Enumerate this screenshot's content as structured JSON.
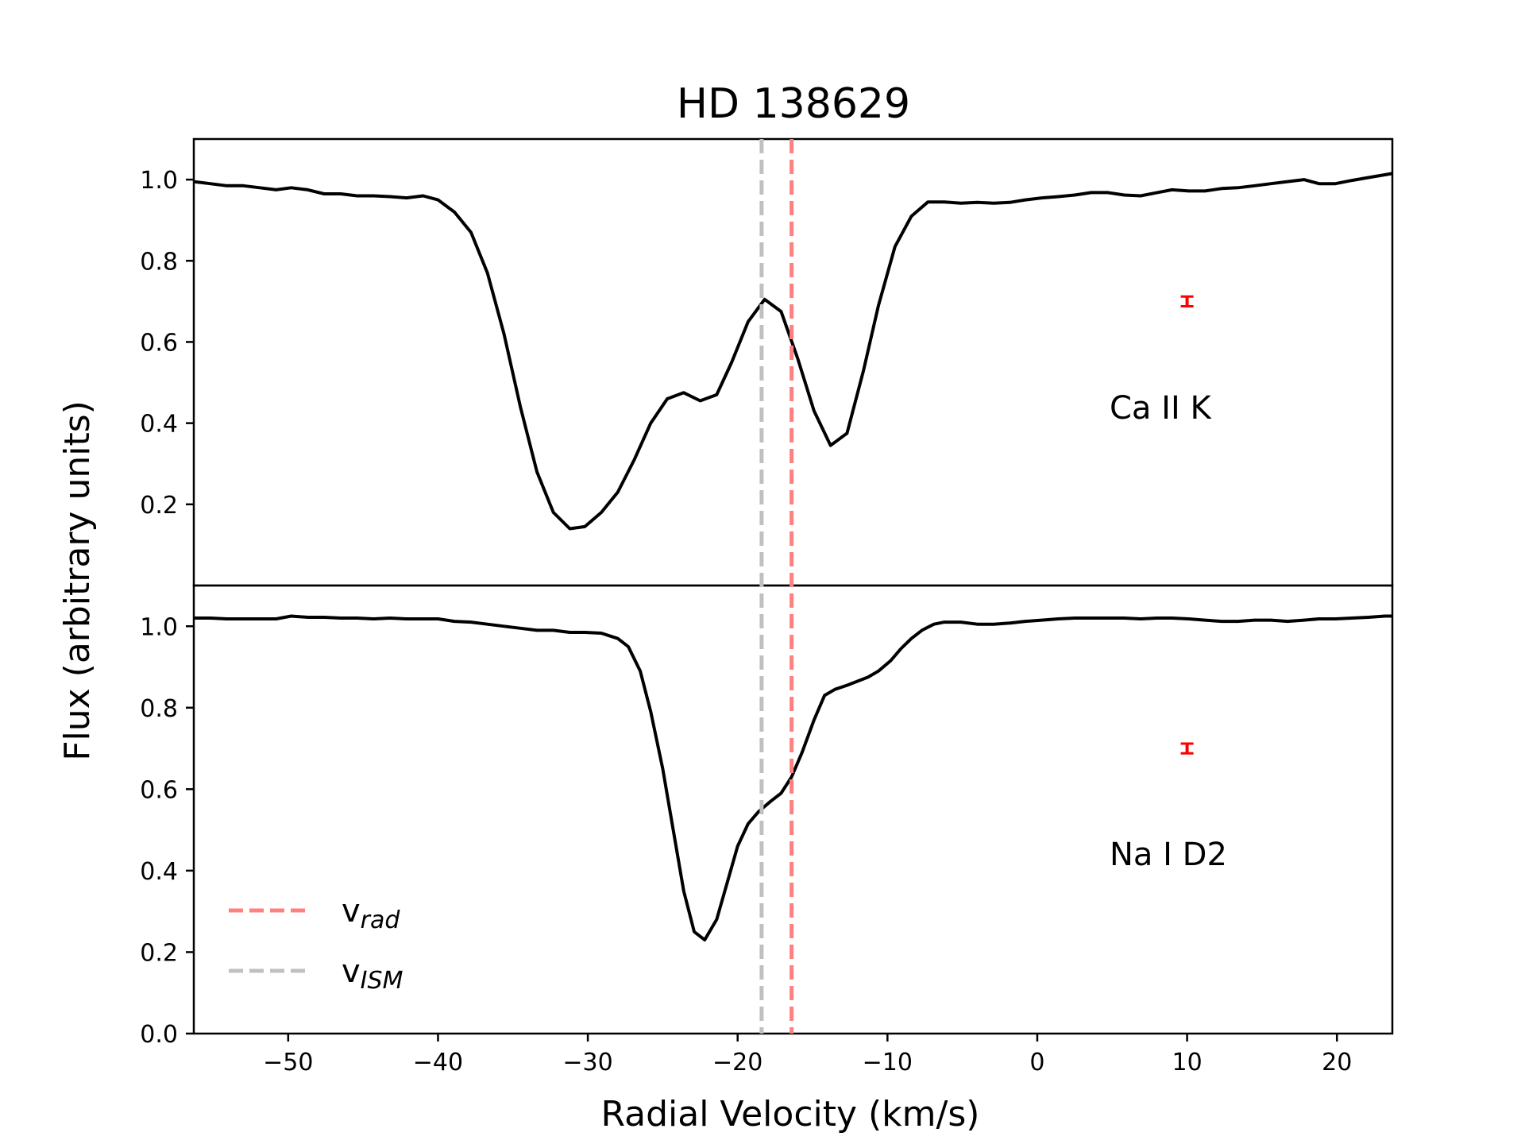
{
  "chart_data": {
    "type": "line",
    "title": "HD 138629",
    "xlabel": "Radial Velocity (km/s)",
    "ylabel": "Flux (arbitrary units)",
    "xlim": [
      -56.3,
      23.7
    ],
    "x_ticks": [
      -50,
      -40,
      -30,
      -20,
      -10,
      0,
      10,
      20
    ],
    "x_tick_labels": [
      "−50",
      "−40",
      "−30",
      "−20",
      "−10",
      "0",
      "10",
      "20"
    ],
    "colors": {
      "line": "#000000",
      "v_rad": "#ff8080",
      "v_ism": "#c0c0c0",
      "error_bar": "#ff0000"
    },
    "legend": {
      "location": "lower-left",
      "entries": [
        {
          "base": "v",
          "sub": "rad",
          "color": "#ff8080"
        },
        {
          "base": "v",
          "sub": "ISM",
          "color": "#c0c0c0"
        }
      ]
    },
    "vlines": [
      {
        "name": "v_rad",
        "x": -16.4,
        "color": "#ff8080"
      },
      {
        "name": "v_ISM",
        "x": -18.4,
        "color": "#c0c0c0"
      }
    ],
    "panels": [
      {
        "label": "Ca II K",
        "ylim": [
          0.0,
          1.1
        ],
        "y_ticks": [
          0.2,
          0.4,
          0.6,
          0.8,
          1.0
        ],
        "y_tick_labels": [
          "0.2",
          "0.4",
          "0.6",
          "0.8",
          "1.0"
        ],
        "error_bar": {
          "x": 10.0,
          "y": 0.7,
          "err": 0.008
        },
        "series": [
          {
            "name": "Ca II K",
            "x": [
              -56.3,
              -55.2,
              -54.1,
              -53.0,
              -51.9,
              -50.8,
              -49.8,
              -48.7,
              -47.6,
              -46.5,
              -45.4,
              -44.3,
              -43.2,
              -42.1,
              -41.0,
              -40.0,
              -38.9,
              -37.8,
              -36.7,
              -35.6,
              -34.5,
              -33.4,
              -32.3,
              -31.2,
              -30.2,
              -29.1,
              -28.0,
              -26.9,
              -25.8,
              -24.7,
              -23.6,
              -22.5,
              -21.4,
              -20.4,
              -19.3,
              -18.2,
              -17.1,
              -16.0,
              -14.9,
              -13.8,
              -12.7,
              -11.6,
              -10.6,
              -9.5,
              -8.4,
              -7.3,
              -6.2,
              -5.1,
              -4.0,
              -2.9,
              -1.8,
              -0.8,
              0.3,
              1.4,
              2.5,
              3.6,
              4.7,
              5.8,
              6.9,
              8.0,
              9.0,
              10.1,
              11.2,
              12.3,
              13.4,
              14.5,
              15.6,
              16.7,
              17.8,
              18.8,
              19.9,
              21.0,
              22.1,
              23.2,
              23.7
            ],
            "y": [
              0.995,
              0.99,
              0.985,
              0.985,
              0.98,
              0.975,
              0.98,
              0.975,
              0.965,
              0.965,
              0.96,
              0.96,
              0.958,
              0.955,
              0.96,
              0.95,
              0.92,
              0.87,
              0.77,
              0.62,
              0.44,
              0.28,
              0.18,
              0.14,
              0.145,
              0.18,
              0.23,
              0.31,
              0.4,
              0.46,
              0.475,
              0.455,
              0.47,
              0.55,
              0.65,
              0.705,
              0.675,
              0.56,
              0.43,
              0.345,
              0.375,
              0.53,
              0.69,
              0.835,
              0.91,
              0.945,
              0.945,
              0.942,
              0.944,
              0.942,
              0.944,
              0.95,
              0.955,
              0.958,
              0.962,
              0.968,
              0.968,
              0.962,
              0.96,
              0.968,
              0.975,
              0.972,
              0.972,
              0.978,
              0.98,
              0.985,
              0.99,
              0.995,
              1.0,
              0.99,
              0.99,
              0.998,
              1.005,
              1.012,
              1.015
            ]
          }
        ]
      },
      {
        "label": "Na I D2",
        "ylim": [
          0.0,
          1.1
        ],
        "y_ticks": [
          0.0,
          0.2,
          0.4,
          0.6,
          0.8,
          1.0
        ],
        "y_tick_labels": [
          "0.0",
          "0.2",
          "0.4",
          "0.6",
          "0.8",
          "1.0"
        ],
        "error_bar": {
          "x": 10.0,
          "y": 0.7,
          "err": 0.008
        },
        "series": [
          {
            "name": "Na I D2",
            "x": [
              -56.3,
              -55.2,
              -54.1,
              -53.0,
              -51.9,
              -50.8,
              -49.8,
              -48.7,
              -47.6,
              -46.5,
              -45.4,
              -44.3,
              -43.2,
              -42.1,
              -41.0,
              -40.0,
              -38.9,
              -37.8,
              -36.7,
              -35.6,
              -34.5,
              -33.4,
              -32.3,
              -31.2,
              -30.2,
              -29.1,
              -28.0,
              -27.3,
              -26.5,
              -25.8,
              -25.0,
              -24.3,
              -23.6,
              -22.9,
              -22.2,
              -21.4,
              -20.7,
              -20.0,
              -19.3,
              -18.6,
              -17.8,
              -17.1,
              -16.4,
              -15.7,
              -14.9,
              -14.2,
              -13.5,
              -12.7,
              -12.0,
              -11.3,
              -10.6,
              -9.8,
              -9.1,
              -8.4,
              -7.7,
              -6.9,
              -6.2,
              -5.1,
              -4.0,
              -2.9,
              -1.8,
              -0.8,
              0.3,
              1.4,
              2.5,
              3.6,
              4.7,
              5.8,
              6.9,
              8.0,
              9.0,
              10.1,
              11.2,
              12.3,
              13.4,
              14.5,
              15.6,
              16.7,
              17.8,
              18.8,
              19.9,
              21.0,
              22.1,
              23.2,
              23.7
            ],
            "y": [
              1.02,
              1.02,
              1.018,
              1.018,
              1.018,
              1.018,
              1.025,
              1.022,
              1.022,
              1.02,
              1.02,
              1.018,
              1.02,
              1.018,
              1.018,
              1.018,
              1.012,
              1.01,
              1.005,
              1.0,
              0.995,
              0.99,
              0.99,
              0.985,
              0.985,
              0.983,
              0.97,
              0.95,
              0.89,
              0.79,
              0.65,
              0.5,
              0.35,
              0.25,
              0.23,
              0.28,
              0.37,
              0.46,
              0.515,
              0.545,
              0.57,
              0.59,
              0.63,
              0.69,
              0.77,
              0.83,
              0.845,
              0.855,
              0.865,
              0.875,
              0.89,
              0.915,
              0.945,
              0.97,
              0.99,
              1.005,
              1.01,
              1.01,
              1.005,
              1.005,
              1.008,
              1.012,
              1.015,
              1.018,
              1.02,
              1.02,
              1.02,
              1.02,
              1.018,
              1.02,
              1.02,
              1.018,
              1.015,
              1.012,
              1.012,
              1.015,
              1.015,
              1.012,
              1.015,
              1.018,
              1.018,
              1.02,
              1.022,
              1.025,
              1.025
            ]
          }
        ]
      }
    ]
  }
}
